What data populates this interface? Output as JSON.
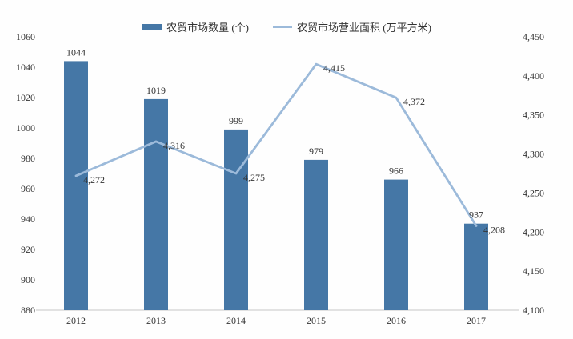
{
  "colors": {
    "bar": "#4577a6",
    "line": "#9cbada",
    "axis_line": "#d9d9d9",
    "text": "#333333",
    "background": "#fefefe"
  },
  "legend": {
    "bar_label": "农贸市场数量 (个)",
    "line_label": "农贸市场营业面积 (万平方米)"
  },
  "chart_data": {
    "type": "bar",
    "subtype": "combo-bar-line",
    "title": "",
    "xlabel": "",
    "ylabel": "",
    "categories": [
      "2012",
      "2013",
      "2014",
      "2015",
      "2016",
      "2017"
    ],
    "series": [
      {
        "name": "农贸市场数量 (个)",
        "type": "bar",
        "axis": "left",
        "color": "#4577a6",
        "values": [
          1044,
          1019,
          999,
          979,
          966,
          937
        ],
        "labels": [
          "1044",
          "1019",
          "999",
          "979",
          "966",
          "937"
        ]
      },
      {
        "name": "农贸市场营业面积 (万平方米)",
        "type": "line",
        "axis": "right",
        "color": "#9cbada",
        "values": [
          4272,
          4316,
          4275,
          4415,
          4372,
          4208
        ],
        "labels": [
          "4,272",
          "4,316",
          "4,275",
          "4,415",
          "4,372",
          "4,208"
        ]
      }
    ],
    "left_axis": {
      "min": 880,
      "max": 1060,
      "step": 20,
      "tick_labels": [
        "880",
        "900",
        "920",
        "940",
        "960",
        "980",
        "1000",
        "1020",
        "1040",
        "1060"
      ]
    },
    "right_axis": {
      "min": 4100,
      "max": 4450,
      "step": 50,
      "tick_labels": [
        "4,100",
        "4,150",
        "4,200",
        "4,250",
        "4,300",
        "4,350",
        "4,400",
        "4,450"
      ]
    },
    "legend_position": "top",
    "grid": false
  }
}
